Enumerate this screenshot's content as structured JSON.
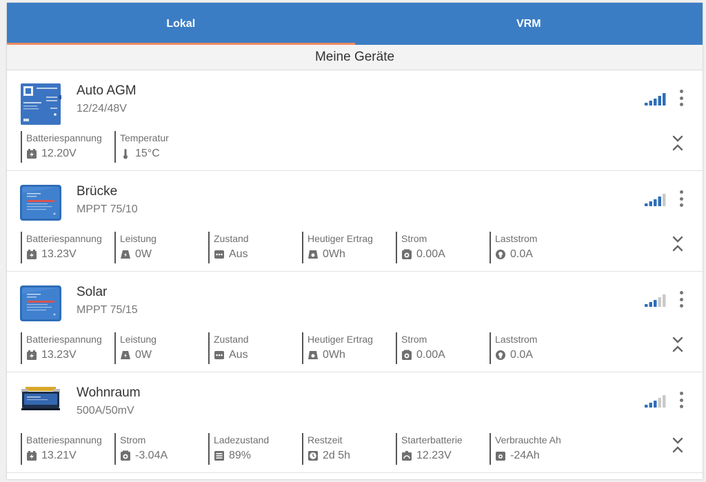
{
  "tabs": [
    {
      "label": "Lokal",
      "active": true
    },
    {
      "label": "VRM",
      "active": false
    }
  ],
  "section_title": "Meine Geräte",
  "devices": [
    {
      "name": "Auto AGM",
      "subtitle": "12/24/48V",
      "image": "smart-battery-sense-image",
      "signal_level": 5,
      "metrics": [
        {
          "label": "Batteriespannung",
          "value": "12.20V",
          "icon": "battery-icon"
        },
        {
          "label": "Temperatur",
          "value": "15°C",
          "icon": "thermometer-icon"
        }
      ]
    },
    {
      "name": "Brücke",
      "subtitle": "MPPT 75/10",
      "image": "mppt-image",
      "signal_level": 4,
      "metrics": [
        {
          "label": "Batteriespannung",
          "value": "13.23V",
          "icon": "battery-icon"
        },
        {
          "label": "Leistung",
          "value": "0W",
          "icon": "power-icon"
        },
        {
          "label": "Zustand",
          "value": "Aus",
          "icon": "state-icon"
        },
        {
          "label": "Heutiger Ertrag",
          "value": "0Wh",
          "icon": "yield-icon"
        },
        {
          "label": "Strom",
          "value": "0.00A",
          "icon": "current-icon"
        },
        {
          "label": "Laststrom",
          "value": "0.0A",
          "icon": "bulb-icon"
        }
      ]
    },
    {
      "name": "Solar",
      "subtitle": "MPPT 75/15",
      "image": "mppt-image",
      "signal_level": 3,
      "metrics": [
        {
          "label": "Batteriespannung",
          "value": "13.23V",
          "icon": "battery-icon"
        },
        {
          "label": "Leistung",
          "value": "0W",
          "icon": "power-icon"
        },
        {
          "label": "Zustand",
          "value": "Aus",
          "icon": "state-icon"
        },
        {
          "label": "Heutiger Ertrag",
          "value": "0Wh",
          "icon": "yield-icon"
        },
        {
          "label": "Strom",
          "value": "0.00A",
          "icon": "current-icon"
        },
        {
          "label": "Laststrom",
          "value": "0.0A",
          "icon": "bulb-icon"
        }
      ]
    },
    {
      "name": "Wohnraum",
      "subtitle": "500A/50mV",
      "image": "bmv-shunt-image",
      "signal_level": 3,
      "metrics": [
        {
          "label": "Batteriespannung",
          "value": "13.21V",
          "icon": "battery-icon"
        },
        {
          "label": "Strom",
          "value": "-3.04A",
          "icon": "current-icon"
        },
        {
          "label": "Ladezustand",
          "value": "89%",
          "icon": "soc-icon"
        },
        {
          "label": "Restzeit",
          "value": "2d 5h",
          "icon": "clock-icon"
        },
        {
          "label": "Starterbatterie",
          "value": "12.23V",
          "icon": "starter-battery-icon"
        },
        {
          "label": "Verbrauchte Ah",
          "value": "-24Ah",
          "icon": "consumed-icon"
        }
      ]
    }
  ],
  "colors": {
    "header": "#3b7dc4",
    "tab_indicator": "#f08a5d",
    "signal_on": "#2f6fb8",
    "signal_off": "#c9c9c9"
  }
}
